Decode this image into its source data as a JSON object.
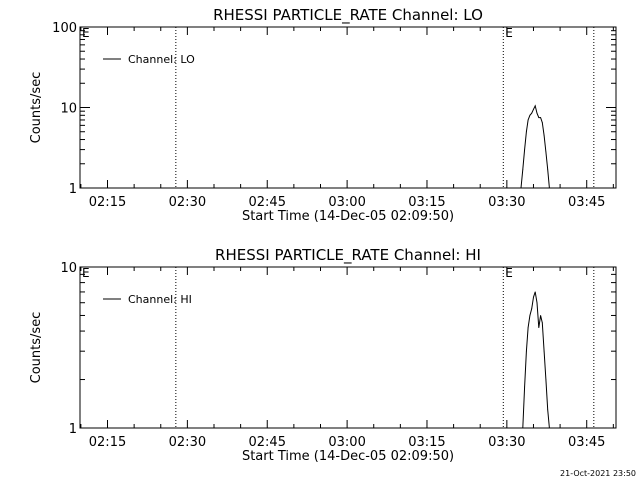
{
  "colors": {
    "background": "#ffffff",
    "foreground": "#000000"
  },
  "footer": {
    "timestamp": "21-Oct-2021 23:50"
  },
  "chart_data": [
    {
      "type": "line",
      "title": "RHESSI PARTICLE_RATE Channel: LO",
      "xlabel": "Start Time (14-Dec-05 02:09:50)",
      "ylabel": "Counts/sec",
      "yscale": "log",
      "ylim": [
        1,
        100
      ],
      "xlim": [
        "02:09:50",
        "03:50:30"
      ],
      "xticks": [
        "02:15",
        "02:30",
        "02:45",
        "03:00",
        "03:15",
        "03:30",
        "03:45"
      ],
      "yticks": [
        "1",
        "10",
        "100"
      ],
      "grid": false,
      "legend": {
        "position": "top-left",
        "entries": [
          "Channel: LO"
        ]
      },
      "markers": [
        {
          "time": "02:27:50",
          "label": ""
        },
        {
          "time": "03:29:20",
          "label": "E"
        },
        {
          "time": "03:46:20",
          "label": ""
        }
      ],
      "edge_labels": [
        "E"
      ],
      "series": [
        {
          "name": "Channel: LO",
          "x": [
            "03:32:40",
            "03:33:00",
            "03:33:20",
            "03:33:40",
            "03:34:00",
            "03:34:20",
            "03:34:40",
            "03:35:00",
            "03:35:20",
            "03:35:40",
            "03:36:00",
            "03:36:20",
            "03:36:40",
            "03:37:00",
            "03:37:20",
            "03:37:40",
            "03:38:00"
          ],
          "values": [
            1.0,
            1.7,
            3.0,
            5.0,
            7.0,
            8.0,
            8.5,
            9.5,
            10.5,
            8.5,
            7.5,
            7.5,
            6.5,
            4.5,
            2.8,
            1.7,
            1.0
          ]
        }
      ]
    },
    {
      "type": "line",
      "title": "RHESSI PARTICLE_RATE Channel: HI",
      "xlabel": "Start Time (14-Dec-05 02:09:50)",
      "ylabel": "Counts/sec",
      "yscale": "log",
      "ylim": [
        1,
        10
      ],
      "xlim": [
        "02:09:50",
        "03:50:30"
      ],
      "xticks": [
        "02:15",
        "02:30",
        "02:45",
        "03:00",
        "03:15",
        "03:30",
        "03:45"
      ],
      "yticks": [
        "1",
        "10"
      ],
      "grid": false,
      "legend": {
        "position": "top-left",
        "entries": [
          "Channel: HI"
        ]
      },
      "markers": [
        {
          "time": "02:27:50",
          "label": ""
        },
        {
          "time": "03:29:20",
          "label": "E"
        },
        {
          "time": "03:46:20",
          "label": ""
        }
      ],
      "edge_labels": [
        "E"
      ],
      "series": [
        {
          "name": "Channel: HI",
          "x": [
            "03:33:00",
            "03:33:20",
            "03:33:40",
            "03:34:00",
            "03:34:20",
            "03:34:40",
            "03:35:00",
            "03:35:20",
            "03:35:40",
            "03:36:00",
            "03:36:20",
            "03:36:40",
            "03:37:00",
            "03:37:20",
            "03:37:40",
            "03:38:00"
          ],
          "values": [
            1.0,
            1.8,
            3.0,
            4.2,
            5.0,
            5.5,
            6.5,
            7.0,
            6.0,
            4.2,
            5.0,
            4.5,
            3.0,
            2.0,
            1.3,
            1.0
          ]
        }
      ]
    }
  ]
}
